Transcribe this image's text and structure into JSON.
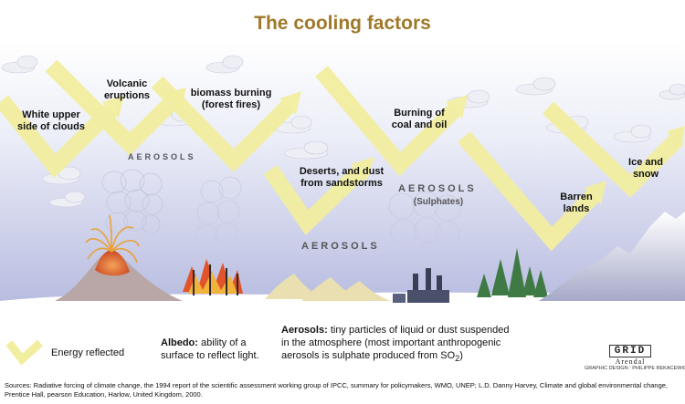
{
  "title": "The cooling factors",
  "labels": {
    "clouds": [
      "White upper",
      "side of clouds"
    ],
    "volcanic": [
      "Volcanic",
      "eruptions"
    ],
    "biomass": [
      "biomass burning",
      "(forest fires)"
    ],
    "deserts": [
      "Deserts, and dust",
      "from sandstorms"
    ],
    "coal": [
      "Burning of",
      "coal and oil"
    ],
    "barren": [
      "Barren",
      "lands"
    ],
    "ice": [
      "Ice and",
      "snow"
    ]
  },
  "aerosols": {
    "word": "AEROSOLS",
    "sulphates": "(Sulphates)"
  },
  "legend": {
    "energy_reflected": "Energy reflected"
  },
  "notes": {
    "albedo_term": "Albedo:",
    "albedo_text": "ability of a surface to reflect light.",
    "aerosols_term": "Aerosols:",
    "aerosols_text": "tiny particles of liquid or dust suspended in the atmosphere (most important anthropogenic aerosols is sulphate produced from SO",
    "aerosols_sub": "2",
    "aerosols_end": ")"
  },
  "logo": {
    "grid": "GRID",
    "arendal": "Arendal",
    "design": "GRAPHIC DESIGN : PHILIPPE REKACEWICZ"
  },
  "sources": "Sources:  Radiative forcing of climate change, the 1994 report of the scientific assessment working group of IPCC, summary for policymakers, WMO, UNEP; L.D. Danny Harvey, Climate and global environmental change, Prentice Hall, pearson Education, Harlow, United Kingdom, 2000.",
  "colors": {
    "arrow": "#f2eea0",
    "sky_top": "#ffffff",
    "sky_bottom": "#b9bde0",
    "title": "#a0782a",
    "lava": "#e0502a",
    "tree": "#3f7a45"
  }
}
